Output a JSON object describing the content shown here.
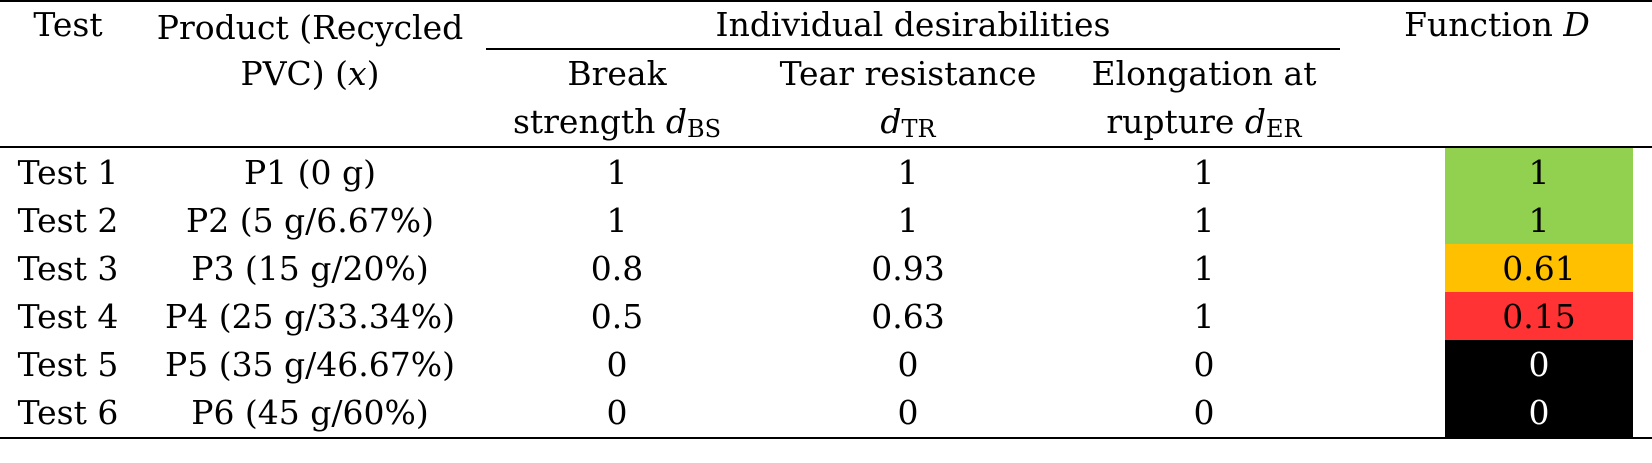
{
  "header": {
    "test": "Test",
    "product_line1": "Product (Recycled",
    "product_line2": "PVC) (",
    "product_var": "x",
    "product_close": ")",
    "group": "Individual desirabilities",
    "bs_line1": "Break",
    "bs_line2": "strength ",
    "bs_symbol": "d",
    "bs_sub": "BS",
    "tr_line1": "Tear resistance",
    "tr_symbol": "d",
    "tr_sub": "TR",
    "er_line1": "Elongation at",
    "er_line2": "rupture ",
    "er_symbol": "d",
    "er_sub": "ER",
    "function_label": "Function ",
    "function_symbol": "D"
  },
  "rows": [
    {
      "test": "Test 1",
      "product": "P1 (0 g)",
      "bs": "1",
      "tr": "1",
      "er": "1",
      "D": "1",
      "d_color": "#92d050",
      "d_text_color": "#000000"
    },
    {
      "test": "Test 2",
      "product": "P2 (5 g/6.67%)",
      "bs": "1",
      "tr": "1",
      "er": "1",
      "D": "1",
      "d_color": "#92d050",
      "d_text_color": "#000000"
    },
    {
      "test": "Test 3",
      "product": "P3 (15 g/20%)",
      "bs": "0.8",
      "tr": "0.93",
      "er": "1",
      "D": "0.61",
      "d_color": "#ffc000",
      "d_text_color": "#000000"
    },
    {
      "test": "Test 4",
      "product": "P4 (25 g/33.34%)",
      "bs": "0.5",
      "tr": "0.63",
      "er": "1",
      "D": "0.15",
      "d_color": "#ff3333",
      "d_text_color": "#000000"
    },
    {
      "test": "Test 5",
      "product": "P5 (35 g/46.67%)",
      "bs": "0",
      "tr": "0",
      "er": "0",
      "D": "0",
      "d_color": "#000000",
      "d_text_color": "#ffffff"
    },
    {
      "test": "Test 6",
      "product": "P6 (45 g/60%)",
      "bs": "0",
      "tr": "0",
      "er": "0",
      "D": "0",
      "d_color": "#000000",
      "d_text_color": "#ffffff"
    }
  ]
}
